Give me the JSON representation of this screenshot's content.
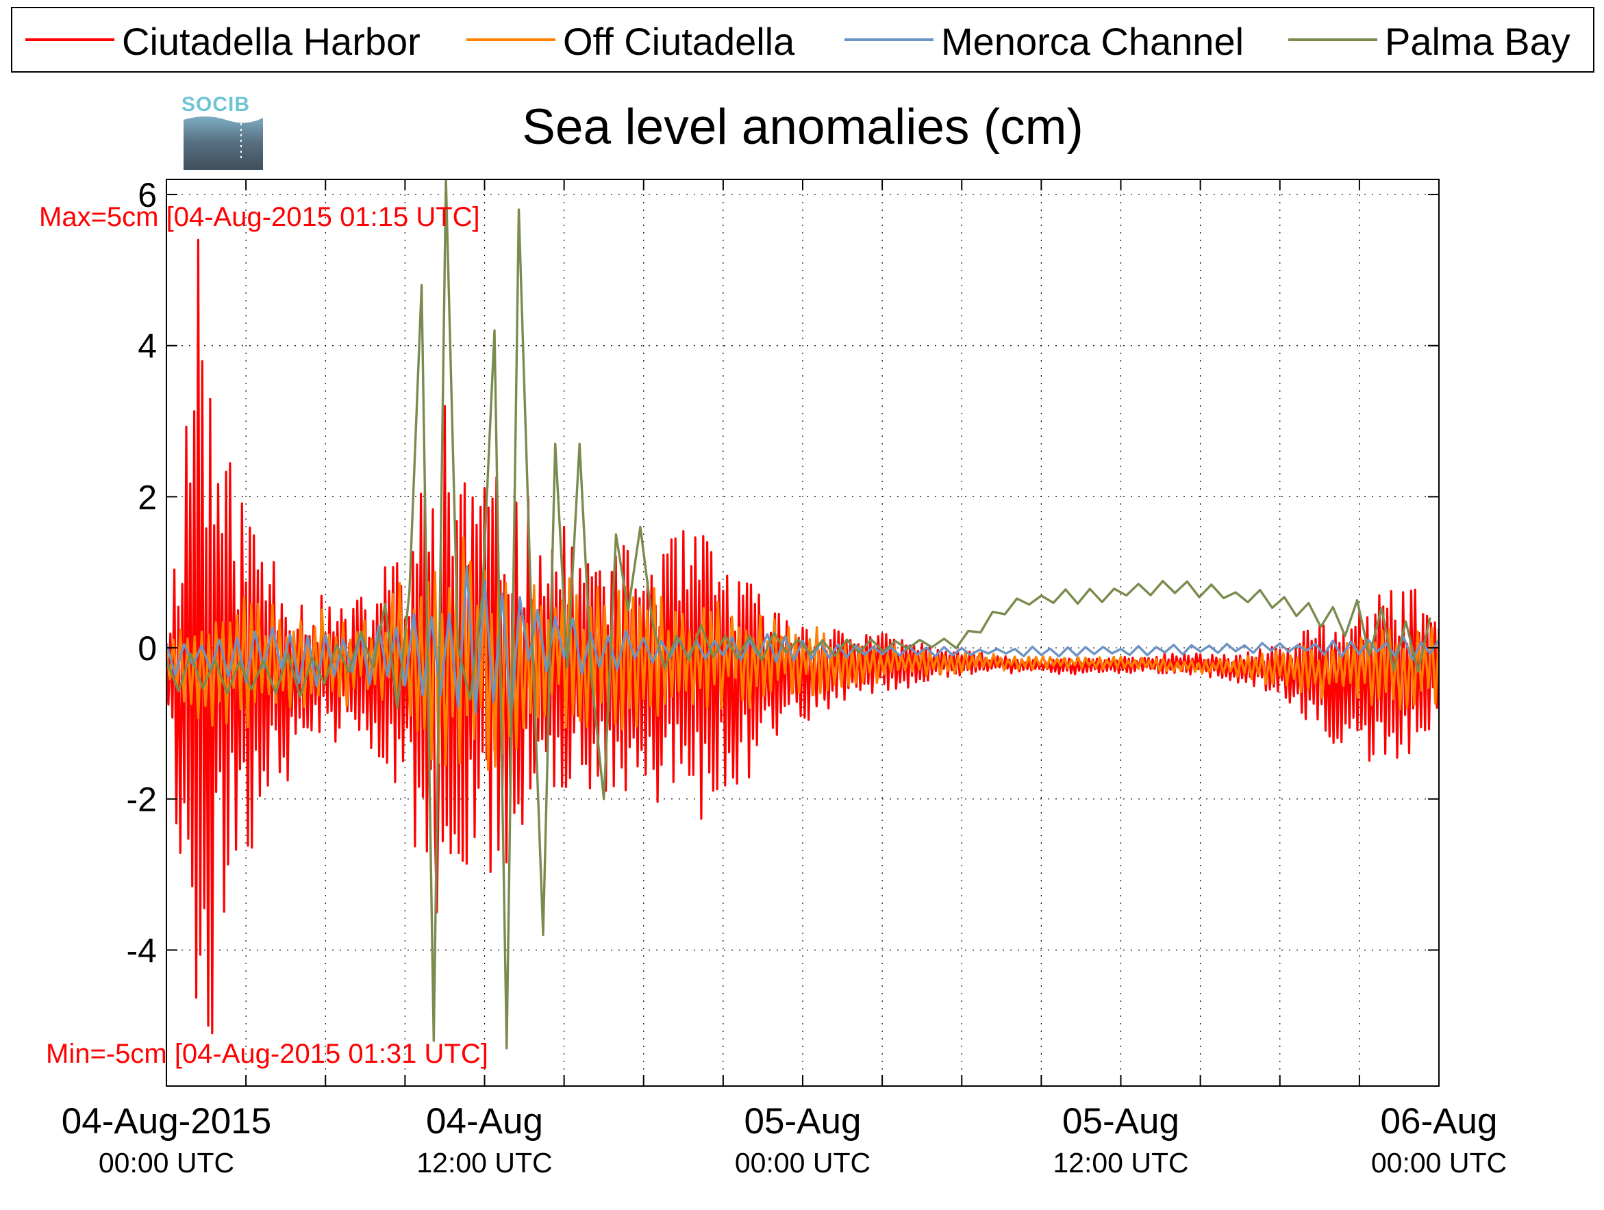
{
  "logo": {
    "text": "SOCIB"
  },
  "chart_data": {
    "type": "line",
    "title": "Sea level anomalies (cm)",
    "xlabel": "",
    "ylabel": "",
    "ylim": [
      -5.8,
      6.2
    ],
    "yticks": [
      -4,
      -2,
      0,
      2,
      4,
      6
    ],
    "ytick_labels": [
      "-4",
      "-2",
      "0",
      "2",
      "4",
      "6"
    ],
    "xlim_hours": [
      0,
      48
    ],
    "x_units": "hours since 04-Aug-2015 00:00 UTC",
    "xticks": [
      {
        "hour": 0,
        "line1": "04-Aug-2015",
        "line2": "00:00 UTC"
      },
      {
        "hour": 12,
        "line1": "04-Aug",
        "line2": "12:00 UTC"
      },
      {
        "hour": 24,
        "line1": "05-Aug",
        "line2": "00:00 UTC"
      },
      {
        "hour": 36,
        "line1": "05-Aug",
        "line2": "12:00 UTC"
      },
      {
        "hour": 48,
        "line1": "06-Aug",
        "line2": "00:00 UTC"
      }
    ],
    "grid": true,
    "legend_position": "top",
    "annotations": {
      "max": "Max=5cm [04-Aug-2015 01:15 UTC]",
      "min": "Min=-5cm [04-Aug-2015 01:31 UTC]"
    },
    "series": [
      {
        "name": "Ciutadella Harbor",
        "color": "#ff0000",
        "envelope": [
          [
            0,
            0.3
          ],
          [
            0.5,
            2.5
          ],
          [
            1.2,
            5.4
          ],
          [
            1.8,
            3.5
          ],
          [
            2.5,
            2.5
          ],
          [
            3.5,
            2.0
          ],
          [
            5,
            1.0
          ],
          [
            7,
            0.8
          ],
          [
            8.5,
            1.5
          ],
          [
            10.5,
            3.0
          ],
          [
            12,
            2.5
          ],
          [
            14,
            2.0
          ],
          [
            16,
            1.5
          ],
          [
            18,
            1.5
          ],
          [
            20,
            1.8
          ],
          [
            22,
            1.2
          ],
          [
            23,
            0.8
          ],
          [
            25,
            0.5
          ],
          [
            28,
            0.3
          ],
          [
            30,
            0.15
          ],
          [
            32,
            0.1
          ],
          [
            36,
            0.1
          ],
          [
            40,
            0.15
          ],
          [
            42,
            0.3
          ],
          [
            44,
            0.8
          ],
          [
            45,
            1.0
          ],
          [
            47,
            1.2
          ],
          [
            48,
            0.5
          ]
        ],
        "bias": [
          [
            0,
            -0.4
          ],
          [
            3,
            -0.4
          ],
          [
            6,
            -0.3
          ],
          [
            10,
            -0.4
          ],
          [
            14,
            -0.3
          ],
          [
            18,
            -0.3
          ],
          [
            22,
            -0.4
          ],
          [
            26,
            -0.2
          ],
          [
            30,
            -0.2
          ],
          [
            34,
            -0.25
          ],
          [
            38,
            -0.2
          ],
          [
            42,
            -0.3
          ],
          [
            46,
            -0.5
          ],
          [
            48,
            -0.2
          ]
        ],
        "period_min": 9,
        "seed": 11,
        "nodes": [
          [
            1.2,
            5.4
          ],
          [
            1.55,
            -5.0
          ],
          [
            1.75,
            -5.1
          ],
          [
            10.5,
            3.2
          ],
          [
            10.2,
            -3.5
          ]
        ]
      },
      {
        "name": "Off Ciutadella",
        "color": "#ff8000",
        "envelope": [
          [
            0,
            0.3
          ],
          [
            2,
            1.0
          ],
          [
            5,
            0.6
          ],
          [
            8,
            0.6
          ],
          [
            10,
            1.3
          ],
          [
            12,
            1.5
          ],
          [
            14,
            1.0
          ],
          [
            18,
            0.9
          ],
          [
            22,
            0.6
          ],
          [
            26,
            0.3
          ],
          [
            30,
            0.15
          ],
          [
            32,
            0.08
          ],
          [
            36,
            0.08
          ],
          [
            40,
            0.1
          ],
          [
            43,
            0.3
          ],
          [
            46,
            0.6
          ],
          [
            48,
            0.5
          ]
        ],
        "bias": [
          [
            0,
            -0.2
          ],
          [
            10,
            -0.1
          ],
          [
            20,
            -0.1
          ],
          [
            26,
            -0.2
          ],
          [
            30,
            -0.2
          ],
          [
            36,
            -0.2
          ],
          [
            40,
            -0.25
          ],
          [
            44,
            -0.3
          ],
          [
            48,
            -0.2
          ]
        ],
        "period_min": 16,
        "seed": 23,
        "nodes": []
      },
      {
        "name": "Menorca Channel",
        "color": "#6b93c4",
        "envelope": [
          [
            0,
            0.3
          ],
          [
            3,
            0.4
          ],
          [
            6,
            0.4
          ],
          [
            9,
            0.5
          ],
          [
            12,
            1.2
          ],
          [
            13,
            1.0
          ],
          [
            15,
            0.4
          ],
          [
            18,
            0.2
          ],
          [
            22,
            0.2
          ],
          [
            26,
            0.1
          ],
          [
            30,
            0.06
          ],
          [
            36,
            0.06
          ],
          [
            40,
            0.06
          ],
          [
            44,
            0.1
          ],
          [
            48,
            0.2
          ]
        ],
        "bias": [
          [
            0,
            -0.1
          ],
          [
            6,
            -0.1
          ],
          [
            12,
            0.2
          ],
          [
            16,
            0.0
          ],
          [
            24,
            0.0
          ],
          [
            30,
            -0.05
          ],
          [
            36,
            -0.05
          ],
          [
            40,
            0.0
          ],
          [
            48,
            0.0
          ]
        ],
        "period_min": 40,
        "seed": 37,
        "nodes": []
      },
      {
        "name": "Palma Bay",
        "color": "#7a8b4e",
        "envelope": [
          [
            0,
            0.25
          ],
          [
            4,
            0.3
          ],
          [
            7,
            0.3
          ],
          [
            8.5,
            0.8
          ],
          [
            12,
            0.8
          ],
          [
            14,
            0.8
          ],
          [
            16,
            0.6
          ],
          [
            20,
            0.3
          ],
          [
            24,
            0.15
          ],
          [
            28,
            0.1
          ],
          [
            32,
            0.1
          ],
          [
            36,
            0.1
          ],
          [
            40,
            0.1
          ],
          [
            42,
            0.2
          ],
          [
            44,
            0.3
          ],
          [
            46,
            0.6
          ],
          [
            48,
            0.5
          ]
        ],
        "bias": [
          [
            0,
            -0.3
          ],
          [
            5,
            -0.4
          ],
          [
            8,
            0.0
          ],
          [
            10,
            0.0
          ],
          [
            14,
            0.2
          ],
          [
            18,
            0.0
          ],
          [
            22,
            0.0
          ],
          [
            26,
            0.0
          ],
          [
            30,
            0.1
          ],
          [
            32,
            0.6
          ],
          [
            35,
            0.7
          ],
          [
            38,
            0.8
          ],
          [
            42,
            0.6
          ],
          [
            44,
            0.4
          ],
          [
            46,
            0.0
          ],
          [
            48,
            -0.2
          ]
        ],
        "period_min": 55,
        "seed": 51,
        "nodes": [
          [
            9.4,
            4.8
          ],
          [
            10.0,
            -5.2
          ],
          [
            10.5,
            6.2
          ],
          [
            11.2,
            0.0
          ],
          [
            12.4,
            4.2
          ],
          [
            12.8,
            -5.3
          ],
          [
            13.2,
            5.8
          ],
          [
            14.0,
            2.5
          ],
          [
            14.3,
            -3.8
          ],
          [
            14.7,
            2.7
          ],
          [
            15.5,
            -2.4
          ],
          [
            15.8,
            2.7
          ],
          [
            16.4,
            -2.0
          ],
          [
            17.1,
            1.5
          ],
          [
            18.0,
            1.6
          ]
        ]
      }
    ]
  }
}
